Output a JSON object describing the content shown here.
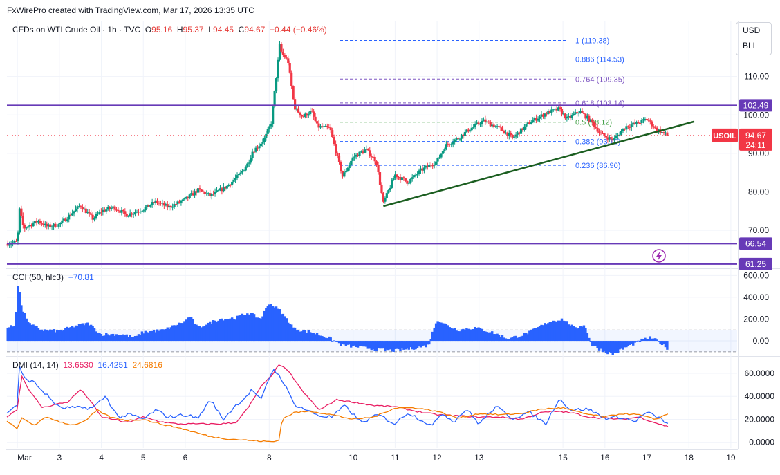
{
  "header": {
    "text": "FxWirePro created with TradingView.com, Mar 17, 2026 13:35 UTC"
  },
  "symbol": {
    "name": "CFDs on WTI Crude Oil · 1h · TVC",
    "open_label": "O",
    "open": "95.16",
    "high_label": "H",
    "high": "95.37",
    "low_label": "L",
    "low": "94.45",
    "close_label": "C",
    "close": "94.67",
    "change": "−0.44 (−0.46%)"
  },
  "currency": {
    "line1": "USD",
    "line2": "BLL"
  },
  "price_badge": {
    "ticker": "USOIL",
    "price": "94.67",
    "countdown": "24:11"
  },
  "h_levels": [
    {
      "label": "102.49",
      "value": 102.49
    },
    {
      "label": "66.54",
      "value": 66.54
    },
    {
      "label": "61.25",
      "value": 61.25
    }
  ],
  "fib_levels": [
    {
      "label": "1 (119.38)",
      "value": 119.38,
      "color": "#2962ff"
    },
    {
      "label": "0.886 (114.53)",
      "value": 114.53,
      "color": "#2962ff"
    },
    {
      "label": "0.764 (109.35)",
      "value": 109.35,
      "color": "#7e57c2"
    },
    {
      "label": "0.618 (103.14)",
      "value": 103.14,
      "color": "#7e57c2"
    },
    {
      "label": "0.5 (98.12)",
      "value": 98.12,
      "color": "#43a047"
    },
    {
      "label": "0.382 (93.10)",
      "value": 93.1,
      "color": "#2962ff"
    },
    {
      "label": "0.236 (86.90)",
      "value": 86.9,
      "color": "#2962ff"
    }
  ],
  "trendline": {
    "from": {
      "day": 10.72,
      "price": 76.3
    },
    "to": {
      "day": 18.13,
      "price": 98.3
    }
  },
  "indicators": {
    "cci": {
      "name": "CCI (50, hlc3)",
      "value": "−70.81"
    },
    "dmi": {
      "name": "DMI (14, 14)",
      "plus_di": "13.6530",
      "minus_di": "16.4251",
      "adx": "24.6816"
    }
  },
  "colors": {
    "up": "#089981",
    "down": "#f23645",
    "hline": "#673ab7",
    "trend": "#1b5e20",
    "cci": "#2962ff",
    "dip": "#e91e63",
    "dim": "#2962ff",
    "adx": "#f57c00"
  },
  "chart_data": {
    "type": "candlestick",
    "title": "CFDs on WTI Crude Oil · 1h · TVC",
    "xlabel": "",
    "ylabel": "USD / BLL",
    "ylim": [
      60.5,
      124.5
    ],
    "y_ticks": [
      70.0,
      80.0,
      90.0,
      100.0,
      110.0
    ],
    "x_ticks": [
      "Mar",
      "3",
      "4",
      "5",
      "6",
      "8",
      "10",
      "11",
      "12",
      "13",
      "15",
      "16",
      "17",
      "18",
      "19"
    ],
    "x_tick_days": [
      2,
      3,
      4,
      5,
      6,
      8,
      10,
      11,
      12,
      13,
      15,
      16,
      17,
      18,
      19
    ],
    "x_range_days": [
      1.75,
      19.15
    ],
    "price_path": [
      [
        1.75,
        66.5
      ],
      [
        2.0,
        67.0
      ],
      [
        2.05,
        75.5
      ],
      [
        2.15,
        70.5
      ],
      [
        2.5,
        72.5
      ],
      [
        2.7,
        71.0
      ],
      [
        3.0,
        71.5
      ],
      [
        3.5,
        76.5
      ],
      [
        3.8,
        73.0
      ],
      [
        4.0,
        75.0
      ],
      [
        4.3,
        76.0
      ],
      [
        4.6,
        74.0
      ],
      [
        5.0,
        75.5
      ],
      [
        5.3,
        77.5
      ],
      [
        5.6,
        76.0
      ],
      [
        6.0,
        78.0
      ],
      [
        6.3,
        80.5
      ],
      [
        6.6,
        79.0
      ],
      [
        7.0,
        81.5
      ],
      [
        7.3,
        84.5
      ],
      [
        7.5,
        87.5
      ],
      [
        7.6,
        90.5
      ],
      [
        7.75,
        92.0
      ],
      [
        7.9,
        94.0
      ],
      [
        8.05,
        98.0
      ],
      [
        8.15,
        108.0
      ],
      [
        8.25,
        118.0
      ],
      [
        8.3,
        116.0
      ],
      [
        8.45,
        114.0
      ],
      [
        8.6,
        102.0
      ],
      [
        8.8,
        99.5
      ],
      [
        9.0,
        101.0
      ],
      [
        9.15,
        97.0
      ],
      [
        9.45,
        96.5
      ],
      [
        9.6,
        90.0
      ],
      [
        9.75,
        84.0
      ],
      [
        10.0,
        89.0
      ],
      [
        10.3,
        91.0
      ],
      [
        10.55,
        88.0
      ],
      [
        10.72,
        77.0
      ],
      [
        11.0,
        84.5
      ],
      [
        11.3,
        82.5
      ],
      [
        11.6,
        85.5
      ],
      [
        12.0,
        88.0
      ],
      [
        12.2,
        92.0
      ],
      [
        12.5,
        94.0
      ],
      [
        12.8,
        96.5
      ],
      [
        13.1,
        98.5
      ],
      [
        13.5,
        96.5
      ],
      [
        13.8,
        94.0
      ],
      [
        14.2,
        98.0
      ],
      [
        14.6,
        100.5
      ],
      [
        14.9,
        101.5
      ],
      [
        15.1,
        99.0
      ],
      [
        15.4,
        101.0
      ],
      [
        15.7,
        98.0
      ],
      [
        15.9,
        95.0
      ],
      [
        16.2,
        93.5
      ],
      [
        16.5,
        97.0
      ],
      [
        16.8,
        98.0
      ],
      [
        17.0,
        99.0
      ],
      [
        17.2,
        96.5
      ],
      [
        17.35,
        95.5
      ],
      [
        17.5,
        94.67
      ]
    ],
    "cci": {
      "ylim": [
        -120,
        640
      ],
      "y_ticks": [
        0,
        200,
        400,
        600
      ],
      "y_tick_labels": [
        "0.00",
        "200.00",
        "400.00",
        "600.00"
      ],
      "band": [
        -100,
        100
      ],
      "last": -70.81,
      "path": [
        [
          1.75,
          120
        ],
        [
          1.95,
          140
        ],
        [
          2.02,
          560
        ],
        [
          2.1,
          300
        ],
        [
          2.3,
          150
        ],
        [
          2.6,
          100
        ],
        [
          3.0,
          90
        ],
        [
          3.4,
          140
        ],
        [
          3.7,
          160
        ],
        [
          4.0,
          60
        ],
        [
          4.5,
          60
        ],
        [
          4.8,
          30
        ],
        [
          5.0,
          80
        ],
        [
          5.5,
          100
        ],
        [
          6.0,
          180
        ],
        [
          6.1,
          230
        ],
        [
          6.3,
          120
        ],
        [
          6.8,
          200
        ],
        [
          7.2,
          210
        ],
        [
          7.5,
          260
        ],
        [
          7.8,
          200
        ],
        [
          8.0,
          350
        ],
        [
          8.25,
          280
        ],
        [
          8.6,
          110
        ],
        [
          9.0,
          80
        ],
        [
          9.4,
          30
        ],
        [
          9.75,
          -40
        ],
        [
          10.2,
          -60
        ],
        [
          10.6,
          -80
        ],
        [
          11.0,
          -90
        ],
        [
          11.4,
          -70
        ],
        [
          11.8,
          -40
        ],
        [
          12.0,
          200
        ],
        [
          12.2,
          150
        ],
        [
          12.5,
          100
        ],
        [
          12.9,
          120
        ],
        [
          13.3,
          80
        ],
        [
          13.7,
          20
        ],
        [
          14.1,
          60
        ],
        [
          14.7,
          180
        ],
        [
          15.0,
          200
        ],
        [
          15.3,
          110
        ],
        [
          15.5,
          150
        ],
        [
          15.7,
          -40
        ],
        [
          16.0,
          -100
        ],
        [
          16.2,
          -120
        ],
        [
          16.5,
          -60
        ],
        [
          16.9,
          10
        ],
        [
          17.1,
          30
        ],
        [
          17.3,
          -10
        ],
        [
          17.5,
          -70.81
        ]
      ]
    },
    "dmi": {
      "ylim": [
        -5,
        72
      ],
      "y_ticks": [
        0,
        20,
        40,
        60
      ],
      "y_tick_labels": [
        "0.0000",
        "20.0000",
        "40.0000",
        "60.0000"
      ],
      "series": [
        {
          "name": "+DI",
          "color": "#e91e63",
          "last": 13.653,
          "path": [
            [
              1.75,
              22
            ],
            [
              2.0,
              29
            ],
            [
              2.1,
              58
            ],
            [
              2.3,
              44
            ],
            [
              2.6,
              30
            ],
            [
              2.9,
              33
            ],
            [
              3.2,
              35
            ],
            [
              3.5,
              46
            ],
            [
              3.7,
              38
            ],
            [
              4.0,
              22
            ],
            [
              4.3,
              20
            ],
            [
              4.6,
              17
            ],
            [
              5.0,
              22
            ],
            [
              5.4,
              18
            ],
            [
              5.8,
              16
            ],
            [
              6.3,
              16
            ],
            [
              6.8,
              16
            ],
            [
              7.2,
              17
            ],
            [
              7.5,
              30
            ],
            [
              7.8,
              48
            ],
            [
              8.05,
              58
            ],
            [
              8.25,
              68
            ],
            [
              8.5,
              60
            ],
            [
              8.8,
              44
            ],
            [
              9.2,
              28
            ],
            [
              9.6,
              37
            ],
            [
              10.0,
              35
            ],
            [
              10.5,
              32
            ],
            [
              11.0,
              31
            ],
            [
              11.5,
              27
            ],
            [
              12.0,
              24
            ],
            [
              12.5,
              23
            ],
            [
              13.0,
              22
            ],
            [
              13.5,
              22
            ],
            [
              14.0,
              20
            ],
            [
              14.5,
              26
            ],
            [
              14.9,
              27
            ],
            [
              15.3,
              25
            ],
            [
              15.6,
              22
            ],
            [
              16.0,
              21
            ],
            [
              16.4,
              20
            ],
            [
              16.8,
              22
            ],
            [
              17.2,
              17
            ],
            [
              17.5,
              13.65
            ]
          ]
        },
        {
          "name": "−DI",
          "color": "#2962ff",
          "last": 16.4251,
          "path": [
            [
              1.75,
              26
            ],
            [
              2.0,
              33
            ],
            [
              2.02,
              68
            ],
            [
              2.15,
              56
            ],
            [
              2.4,
              52
            ],
            [
              2.7,
              41
            ],
            [
              3.0,
              30
            ],
            [
              3.4,
              30
            ],
            [
              3.8,
              30
            ],
            [
              4.1,
              40
            ],
            [
              4.4,
              22
            ],
            [
              4.7,
              24
            ],
            [
              5.0,
              20
            ],
            [
              5.3,
              28
            ],
            [
              5.6,
              22
            ],
            [
              6.0,
              24
            ],
            [
              6.3,
              21
            ],
            [
              6.6,
              37
            ],
            [
              6.9,
              20
            ],
            [
              7.2,
              32
            ],
            [
              7.4,
              38
            ],
            [
              7.6,
              46
            ],
            [
              7.8,
              36
            ],
            [
              8.0,
              56
            ],
            [
              8.1,
              64
            ],
            [
              8.3,
              55
            ],
            [
              8.6,
              33
            ],
            [
              8.9,
              28
            ],
            [
              9.2,
              23
            ],
            [
              9.5,
              22
            ],
            [
              9.8,
              32
            ],
            [
              10.2,
              17
            ],
            [
              10.6,
              24
            ],
            [
              11.0,
              16
            ],
            [
              11.3,
              26
            ],
            [
              11.6,
              20
            ],
            [
              11.9,
              14
            ],
            [
              12.1,
              26
            ],
            [
              12.4,
              18
            ],
            [
              12.7,
              29
            ],
            [
              13.0,
              16
            ],
            [
              13.4,
              31
            ],
            [
              13.8,
              21
            ],
            [
              14.2,
              26
            ],
            [
              14.6,
              16
            ],
            [
              14.9,
              38
            ],
            [
              15.2,
              28
            ],
            [
              15.6,
              29
            ],
            [
              16.0,
              21
            ],
            [
              16.4,
              22
            ],
            [
              16.7,
              18
            ],
            [
              17.0,
              26
            ],
            [
              17.3,
              21
            ],
            [
              17.5,
              16.43
            ]
          ]
        },
        {
          "name": "ADX",
          "color": "#f57c00",
          "last": 24.6816,
          "path": [
            [
              1.75,
              18
            ],
            [
              2.0,
              12
            ],
            [
              2.1,
              21
            ],
            [
              2.4,
              15
            ],
            [
              2.7,
              22
            ],
            [
              3.0,
              18
            ],
            [
              3.3,
              15
            ],
            [
              3.6,
              18
            ],
            [
              3.9,
              28
            ],
            [
              4.2,
              22
            ],
            [
              4.6,
              19
            ],
            [
              5.0,
              20
            ],
            [
              5.4,
              16
            ],
            [
              5.8,
              13
            ],
            [
              6.2,
              9
            ],
            [
              6.6,
              5
            ],
            [
              7.0,
              3
            ],
            [
              7.4,
              2
            ],
            [
              7.8,
              1
            ],
            [
              8.1,
              0.5
            ],
            [
              8.25,
              2
            ],
            [
              8.3,
              20
            ],
            [
              8.6,
              26
            ],
            [
              9.0,
              27
            ],
            [
              9.5,
              24
            ],
            [
              10.0,
              20
            ],
            [
              10.5,
              22
            ],
            [
              11.0,
              30
            ],
            [
              11.5,
              30
            ],
            [
              12.0,
              27
            ],
            [
              12.5,
              21
            ],
            [
              13.0,
              25
            ],
            [
              13.5,
              24
            ],
            [
              14.0,
              25
            ],
            [
              14.5,
              29
            ],
            [
              15.0,
              30
            ],
            [
              15.5,
              25
            ],
            [
              16.0,
              22
            ],
            [
              16.4,
              25
            ],
            [
              16.8,
              24
            ],
            [
              17.2,
              20
            ],
            [
              17.5,
              24.68
            ]
          ]
        }
      ]
    }
  }
}
